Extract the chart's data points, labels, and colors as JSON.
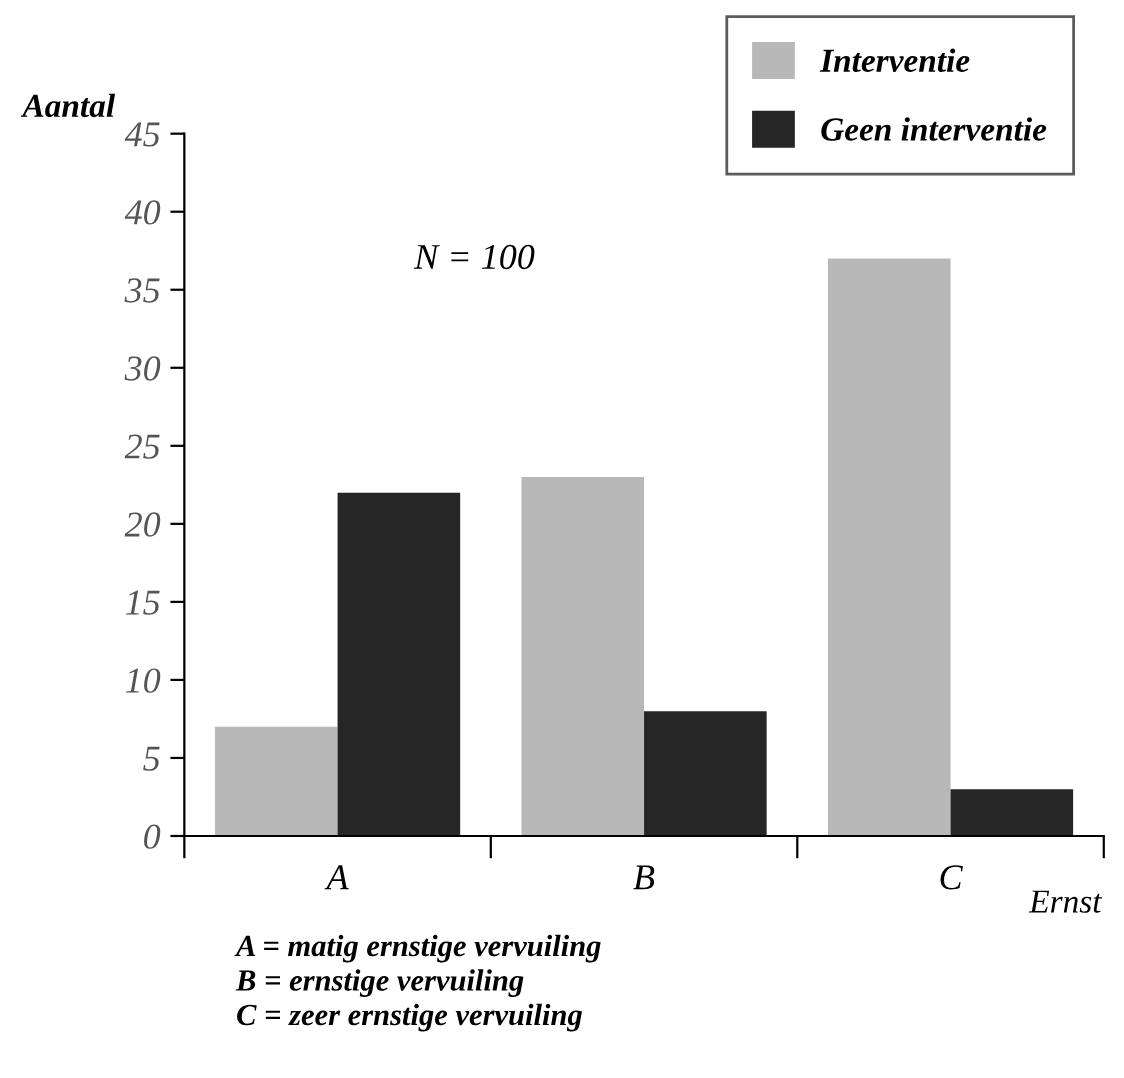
{
  "chart_data": {
    "type": "bar",
    "xlabel": "Ernst",
    "ylabel": "Aantal",
    "categories": [
      "A",
      "B",
      "C"
    ],
    "series": [
      {
        "name": "Interventie",
        "color": "#b8b8b8",
        "values": [
          7,
          23,
          37
        ]
      },
      {
        "name": "Geen interventie",
        "color": "#262626",
        "values": [
          22,
          8,
          3
        ]
      }
    ],
    "ylim": [
      0,
      45
    ],
    "yticks": [
      0,
      5,
      10,
      15,
      20,
      25,
      30,
      35,
      40,
      45
    ],
    "grid": false,
    "legend": "top right",
    "annotations": [
      "N = 100",
      "A = matig ernstige vervuiling",
      "B = ernstige vervuiling",
      "C = zeer ernstige vervuiling"
    ]
  }
}
